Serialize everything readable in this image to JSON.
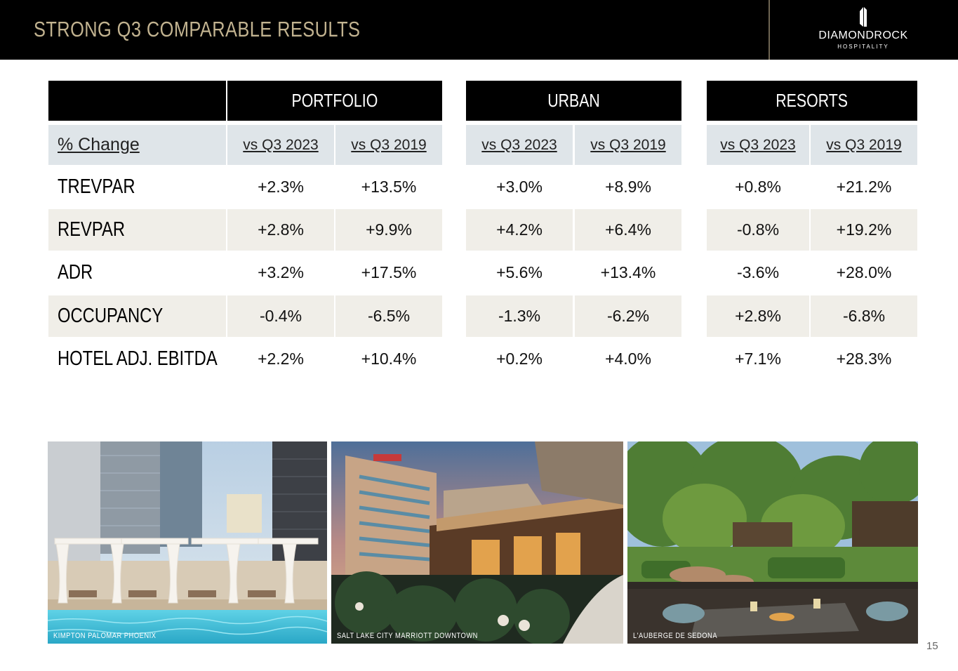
{
  "header": {
    "title": "STRONG Q3 COMPARABLE RESULTS",
    "logo_name": "DIAMONDROCK",
    "logo_sub": "HOSPITALITY"
  },
  "table": {
    "groups": [
      "PORTFOLIO",
      "URBAN",
      "RESORTS"
    ],
    "row_header_label": "% Change",
    "sub_headers": [
      "vs Q3 2023",
      "vs Q3 2019",
      "vs Q3 2023",
      "vs Q3 2019",
      "vs Q3 2023",
      "vs Q3 2019"
    ],
    "rows": [
      {
        "label": "TREVPAR",
        "values": [
          "+2.3%",
          "+13.5%",
          "+3.0%",
          "+8.9%",
          "+0.8%",
          "+21.2%"
        ]
      },
      {
        "label": "REVPAR",
        "values": [
          "+2.8%",
          "+9.9%",
          "+4.2%",
          "+6.4%",
          "-0.8%",
          "+19.2%"
        ]
      },
      {
        "label": "ADR",
        "values": [
          "+3.2%",
          "+17.5%",
          "+5.6%",
          "+13.4%",
          "-3.6%",
          "+28.0%"
        ]
      },
      {
        "label": "OCCUPANCY",
        "values": [
          "-0.4%",
          "-6.5%",
          "-1.3%",
          "-6.2%",
          "+2.8%",
          "-6.8%"
        ]
      },
      {
        "label": "HOTEL ADJ. EBITDA",
        "values": [
          "+2.2%",
          "+10.4%",
          "+0.2%",
          "+4.0%",
          "+7.1%",
          "+28.3%"
        ]
      }
    ]
  },
  "photos": [
    {
      "caption": "KIMPTON PALOMAR PHOENIX"
    },
    {
      "caption": "SALT LAKE CITY MARRIOTT DOWNTOWN"
    },
    {
      "caption": "L'AUBERGE DE SEDONA"
    }
  ],
  "page_number": "15"
}
